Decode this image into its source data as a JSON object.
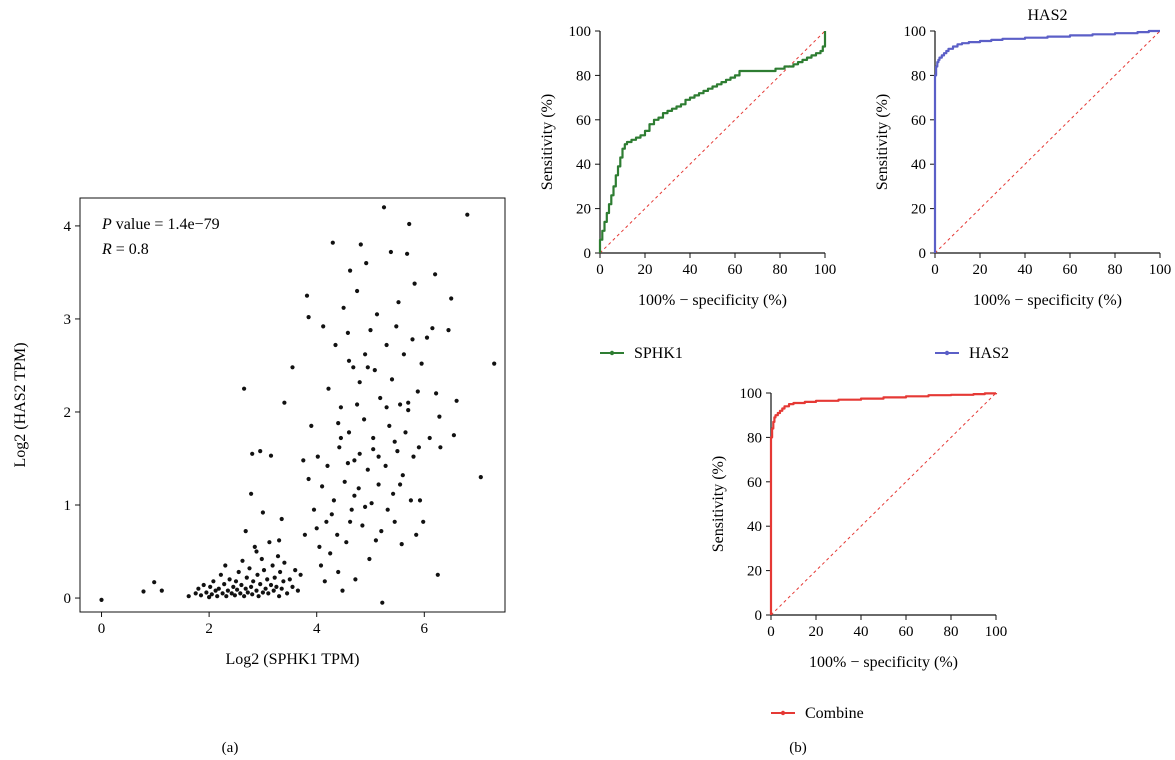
{
  "panel_labels": {
    "a": "(a)",
    "b": "(b)"
  },
  "colors": {
    "scatter": "#111111",
    "sphk1": "#2e7d32",
    "has2": "#5b5fc7",
    "combine": "#e53935",
    "reference": "#e53935",
    "axis": "#111111"
  },
  "chart_data": [
    {
      "id": "scatter",
      "type": "scatter",
      "title": "",
      "annotations": {
        "p_label": "P",
        "p_value": " value = 1.4e−79",
        "r_label": "R",
        "r_value": " = 0.8"
      },
      "xlabel": "Log2 (SPHK1 TPM)",
      "ylabel": "Log2 (HAS2 TPM)",
      "xlim": [
        -0.4,
        7.5
      ],
      "ylim": [
        -0.15,
        4.3
      ],
      "xticks": [
        0,
        2,
        4,
        6
      ],
      "yticks": [
        0,
        1,
        2,
        3,
        4
      ],
      "points": [
        [
          0.0,
          -0.02
        ],
        [
          0.78,
          0.07
        ],
        [
          0.98,
          0.17
        ],
        [
          1.12,
          0.08
        ],
        [
          1.62,
          0.02
        ],
        [
          1.75,
          0.05
        ],
        [
          1.8,
          0.1
        ],
        [
          1.85,
          0.03
        ],
        [
          1.9,
          0.14
        ],
        [
          1.95,
          0.06
        ],
        [
          2.0,
          0.01
        ],
        [
          2.02,
          0.12
        ],
        [
          2.05,
          0.04
        ],
        [
          2.08,
          0.18
        ],
        [
          2.12,
          0.08
        ],
        [
          2.15,
          0.02
        ],
        [
          2.18,
          0.1
        ],
        [
          2.22,
          0.25
        ],
        [
          2.25,
          0.05
        ],
        [
          2.28,
          0.15
        ],
        [
          2.3,
          0.35
        ],
        [
          2.32,
          0.02
        ],
        [
          2.35,
          0.08
        ],
        [
          2.38,
          0.2
        ],
        [
          2.42,
          0.05
        ],
        [
          2.45,
          0.12
        ],
        [
          2.48,
          0.03
        ],
        [
          2.5,
          0.18
        ],
        [
          2.52,
          0.09
        ],
        [
          2.55,
          0.28
        ],
        [
          2.58,
          0.05
        ],
        [
          2.6,
          0.14
        ],
        [
          2.62,
          0.4
        ],
        [
          2.65,
          0.02
        ],
        [
          2.68,
          0.1
        ],
        [
          2.7,
          0.22
        ],
        [
          2.72,
          0.06
        ],
        [
          2.75,
          0.32
        ],
        [
          2.78,
          0.12
        ],
        [
          2.8,
          0.04
        ],
        [
          2.82,
          0.18
        ],
        [
          2.85,
          0.55
        ],
        [
          2.88,
          0.08
        ],
        [
          2.9,
          0.25
        ],
        [
          2.92,
          0.02
        ],
        [
          2.95,
          0.15
        ],
        [
          2.98,
          0.42
        ],
        [
          3.0,
          0.06
        ],
        [
          3.02,
          0.3
        ],
        [
          3.05,
          0.1
        ],
        [
          3.08,
          0.2
        ],
        [
          3.1,
          0.05
        ],
        [
          3.12,
          0.6
        ],
        [
          3.15,
          0.14
        ],
        [
          3.18,
          0.35
        ],
        [
          3.2,
          0.08
        ],
        [
          3.22,
          0.22
        ],
        [
          3.25,
          0.12
        ],
        [
          3.28,
          0.45
        ],
        [
          3.3,
          0.02
        ],
        [
          3.32,
          0.28
        ],
        [
          3.35,
          0.1
        ],
        [
          3.38,
          0.18
        ],
        [
          3.4,
          0.38
        ],
        [
          3.45,
          0.05
        ],
        [
          3.5,
          0.2
        ],
        [
          3.55,
          0.12
        ],
        [
          3.6,
          0.3
        ],
        [
          3.65,
          0.08
        ],
        [
          3.7,
          0.25
        ],
        [
          2.65,
          2.25
        ],
        [
          2.8,
          1.55
        ],
        [
          2.95,
          1.58
        ],
        [
          3.15,
          1.53
        ],
        [
          3.35,
          0.85
        ],
        [
          3.4,
          2.1
        ],
        [
          2.78,
          1.12
        ],
        [
          2.68,
          0.72
        ],
        [
          2.88,
          0.5
        ],
        [
          3.0,
          0.92
        ],
        [
          3.55,
          2.48
        ],
        [
          3.3,
          0.62
        ],
        [
          3.75,
          1.48
        ],
        [
          3.85,
          1.28
        ],
        [
          3.78,
          0.68
        ],
        [
          3.82,
          3.25
        ],
        [
          3.85,
          3.02
        ],
        [
          3.9,
          1.85
        ],
        [
          3.95,
          0.95
        ],
        [
          4.0,
          0.75
        ],
        [
          4.02,
          1.52
        ],
        [
          4.05,
          0.55
        ],
        [
          4.08,
          0.35
        ],
        [
          4.1,
          1.2
        ],
        [
          4.12,
          2.92
        ],
        [
          4.15,
          0.18
        ],
        [
          4.18,
          0.82
        ],
        [
          4.2,
          1.42
        ],
        [
          4.22,
          2.25
        ],
        [
          4.25,
          0.48
        ],
        [
          4.28,
          0.9
        ],
        [
          4.3,
          3.82
        ],
        [
          4.32,
          1.05
        ],
        [
          4.35,
          2.72
        ],
        [
          4.38,
          0.68
        ],
        [
          4.4,
          0.28
        ],
        [
          4.42,
          1.62
        ],
        [
          4.45,
          2.05
        ],
        [
          4.48,
          0.08
        ],
        [
          4.5,
          3.12
        ],
        [
          4.52,
          1.25
        ],
        [
          4.55,
          0.6
        ],
        [
          4.58,
          2.85
        ],
        [
          4.6,
          1.78
        ],
        [
          4.62,
          3.52
        ],
        [
          4.65,
          0.95
        ],
        [
          4.68,
          2.48
        ],
        [
          4.7,
          1.48
        ],
        [
          4.72,
          0.2
        ],
        [
          4.75,
          3.3
        ],
        [
          4.78,
          1.18
        ],
        [
          4.8,
          2.32
        ],
        [
          4.82,
          3.8
        ],
        [
          4.85,
          0.78
        ],
        [
          4.88,
          1.92
        ],
        [
          4.9,
          2.62
        ],
        [
          4.92,
          3.6
        ],
        [
          4.95,
          1.38
        ],
        [
          4.98,
          0.42
        ],
        [
          5.0,
          2.88
        ],
        [
          5.02,
          1.02
        ],
        [
          5.05,
          1.72
        ],
        [
          5.08,
          2.45
        ],
        [
          5.1,
          0.62
        ],
        [
          5.12,
          3.05
        ],
        [
          5.15,
          1.52
        ],
        [
          5.18,
          2.15
        ],
        [
          5.2,
          0.72
        ],
        [
          5.22,
          -0.05
        ],
        [
          5.25,
          4.2
        ],
        [
          5.28,
          1.42
        ],
        [
          5.3,
          2.72
        ],
        [
          5.32,
          0.95
        ],
        [
          5.35,
          1.85
        ],
        [
          5.38,
          3.72
        ],
        [
          5.4,
          2.35
        ],
        [
          5.42,
          1.12
        ],
        [
          5.45,
          0.82
        ],
        [
          5.48,
          2.92
        ],
        [
          5.5,
          1.58
        ],
        [
          5.52,
          3.18
        ],
        [
          5.55,
          2.08
        ],
        [
          5.58,
          0.58
        ],
        [
          5.6,
          1.32
        ],
        [
          5.62,
          2.62
        ],
        [
          5.65,
          1.78
        ],
        [
          5.68,
          3.7
        ],
        [
          5.7,
          2.02
        ],
        [
          5.72,
          4.02
        ],
        [
          5.75,
          1.05
        ],
        [
          5.78,
          2.78
        ],
        [
          5.8,
          1.52
        ],
        [
          5.82,
          3.38
        ],
        [
          5.85,
          0.68
        ],
        [
          5.88,
          2.22
        ],
        [
          5.9,
          1.62
        ],
        [
          5.92,
          1.05
        ],
        [
          5.95,
          2.52
        ],
        [
          5.98,
          0.82
        ],
        [
          6.05,
          2.8
        ],
        [
          6.1,
          1.72
        ],
        [
          6.15,
          2.9
        ],
        [
          6.2,
          3.48
        ],
        [
          6.22,
          2.2
        ],
        [
          6.25,
          0.25
        ],
        [
          6.28,
          1.95
        ],
        [
          6.3,
          1.62
        ],
        [
          6.45,
          2.88
        ],
        [
          6.5,
          3.22
        ],
        [
          6.55,
          1.75
        ],
        [
          6.6,
          2.12
        ],
        [
          6.8,
          4.12
        ],
        [
          7.05,
          1.3
        ],
        [
          7.3,
          2.52
        ],
        [
          4.58,
          1.45
        ],
        [
          4.8,
          1.55
        ],
        [
          5.05,
          1.6
        ],
        [
          4.7,
          1.1
        ],
        [
          4.9,
          0.98
        ],
        [
          5.15,
          1.22
        ],
        [
          4.62,
          0.82
        ],
        [
          5.45,
          1.68
        ],
        [
          4.4,
          1.88
        ],
        [
          4.6,
          2.55
        ],
        [
          4.75,
          2.08
        ],
        [
          5.3,
          2.05
        ],
        [
          4.95,
          2.48
        ],
        [
          5.7,
          2.1
        ],
        [
          5.55,
          1.22
        ],
        [
          4.45,
          1.72
        ]
      ]
    },
    {
      "id": "roc-sphk1",
      "type": "line",
      "title": "",
      "xlabel": "100% − specificity (%)",
      "ylabel": "Sensitivity (%)",
      "xlim": [
        0,
        100
      ],
      "ylim": [
        0,
        100
      ],
      "xticks": [
        0,
        20,
        40,
        60,
        80,
        100
      ],
      "yticks": [
        0,
        20,
        40,
        60,
        80,
        100
      ],
      "series": [
        {
          "name": "SPHK1",
          "x": [
            0,
            0,
            1,
            2,
            3,
            4,
            5,
            6,
            7,
            8,
            9,
            10,
            11,
            12,
            14,
            16,
            18,
            20,
            22,
            24,
            26,
            28,
            30,
            32,
            34,
            36,
            38,
            40,
            42,
            44,
            46,
            48,
            50,
            52,
            54,
            56,
            58,
            60,
            62,
            64,
            66,
            68,
            70,
            72,
            74,
            76,
            78,
            80,
            82,
            84,
            86,
            88,
            90,
            92,
            94,
            96,
            98,
            99,
            100,
            100
          ],
          "y": [
            0,
            6,
            10,
            14,
            18,
            22,
            26,
            30,
            35,
            39,
            43,
            47,
            49,
            50,
            51,
            52,
            53,
            55,
            58,
            60,
            61,
            63,
            64,
            65,
            66,
            67,
            69,
            70,
            71,
            72,
            73,
            74,
            75,
            76,
            77,
            78,
            79,
            80,
            82,
            82,
            82,
            82,
            82,
            82,
            82,
            82,
            83,
            83,
            84,
            84,
            85,
            86,
            87,
            88,
            89,
            90,
            91,
            93,
            95,
            100
          ]
        }
      ]
    },
    {
      "id": "roc-has2",
      "type": "line",
      "title": "HAS2",
      "xlabel": "100% − specificity (%)",
      "ylabel": "Sensitivity (%)",
      "xlim": [
        0,
        100
      ],
      "ylim": [
        0,
        100
      ],
      "xticks": [
        0,
        20,
        40,
        60,
        80,
        100
      ],
      "yticks": [
        0,
        20,
        40,
        60,
        80,
        100
      ],
      "series": [
        {
          "name": "HAS2",
          "x": [
            0,
            0,
            0,
            0.5,
            1,
            1.5,
            2,
            3,
            4,
            5,
            6,
            8,
            10,
            12,
            15,
            20,
            25,
            30,
            40,
            50,
            60,
            70,
            80,
            90,
            95,
            100
          ],
          "y": [
            0,
            45,
            80,
            84,
            86,
            87,
            88,
            89,
            90,
            91,
            92,
            93,
            94,
            94.5,
            95,
            95.5,
            96,
            96.5,
            97,
            97.5,
            98,
            98.5,
            99,
            99.5,
            100,
            100
          ]
        }
      ]
    },
    {
      "id": "roc-combine",
      "type": "line",
      "title": "",
      "xlabel": "100% − specificity (%)",
      "ylabel": "Sensitivity (%)",
      "xlim": [
        0,
        100
      ],
      "ylim": [
        0,
        100
      ],
      "xticks": [
        0,
        20,
        40,
        60,
        80,
        100
      ],
      "yticks": [
        0,
        20,
        40,
        60,
        80,
        100
      ],
      "series": [
        {
          "name": "Combine",
          "x": [
            0,
            0,
            0,
            0.5,
            1,
            1.5,
            2,
            3,
            4,
            5,
            6,
            8,
            10,
            15,
            20,
            30,
            40,
            50,
            60,
            70,
            80,
            90,
            95,
            100
          ],
          "y": [
            0,
            50,
            80,
            84,
            87,
            89,
            90,
            91,
            92,
            93,
            94,
            95,
            95.5,
            96,
            96.5,
            97,
            97.5,
            98,
            98.5,
            99,
            99.2,
            99.5,
            99.8,
            100
          ]
        }
      ]
    }
  ]
}
